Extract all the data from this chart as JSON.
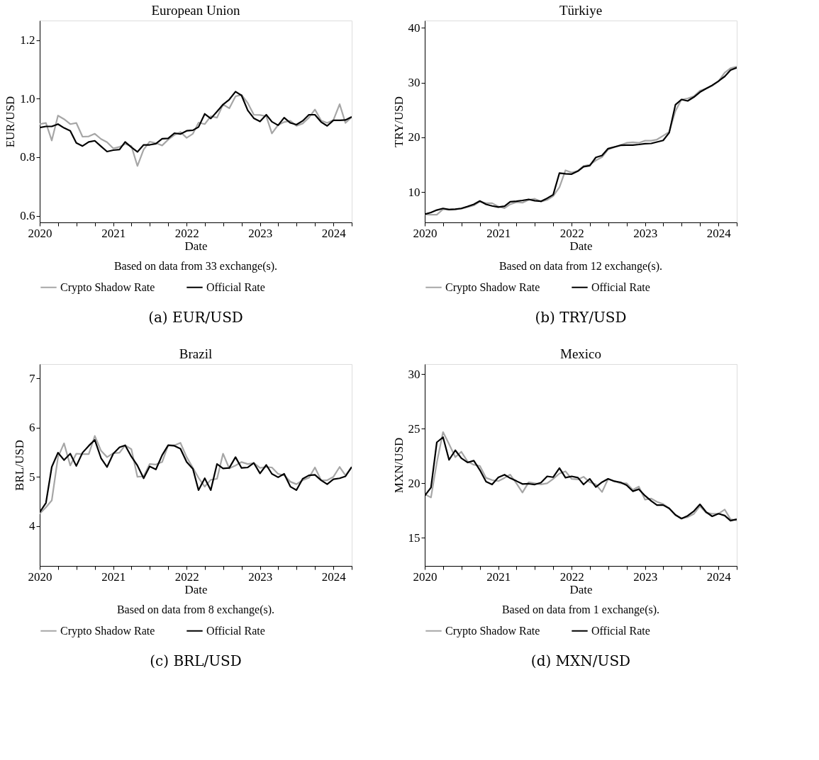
{
  "chart_data": [
    {
      "type": "line",
      "title": "European Union",
      "xlabel": "Date",
      "ylabel": "EUR/USD",
      "legend": "bottom",
      "line_style": "solid",
      "annotations": [
        "Based on data from 33 exchange(s).",
        "(a) EUR/USD"
      ],
      "xlim": [
        "2020-01",
        "2024-04"
      ],
      "xticks": [
        {
          "value": "2020-01",
          "label": "2020"
        },
        {
          "value": "2020-04",
          "label": null
        },
        {
          "value": "2020-07",
          "label": null
        },
        {
          "value": "2020-10",
          "label": null
        },
        {
          "value": "2021-01",
          "label": "2021"
        },
        {
          "value": "2021-04",
          "label": null
        },
        {
          "value": "2021-07",
          "label": null
        },
        {
          "value": "2021-10",
          "label": null
        },
        {
          "value": "2022-01",
          "label": "2022"
        },
        {
          "value": "2022-04",
          "label": null
        },
        {
          "value": "2022-07",
          "label": null
        },
        {
          "value": "2022-10",
          "label": null
        },
        {
          "value": "2023-01",
          "label": "2023"
        },
        {
          "value": "2023-04",
          "label": null
        },
        {
          "value": "2023-07",
          "label": null
        },
        {
          "value": "2023-10",
          "label": null
        },
        {
          "value": "2024-01",
          "label": "2024"
        },
        {
          "value": "2024-04",
          "label": null
        }
      ],
      "ylim": [
        0.577,
        1.267
      ],
      "yticks": [
        0.6,
        0.8,
        {
          "value": 1.0,
          "label": "1.0"
        },
        1.2
      ],
      "x": [
        "2020-01",
        "2020-02",
        "2020-03",
        "2020-04",
        "2020-05",
        "2020-06",
        "2020-07",
        "2020-08",
        "2020-09",
        "2020-10",
        "2020-11",
        "2020-12",
        "2021-01",
        "2021-02",
        "2021-03",
        "2021-04",
        "2021-05",
        "2021-06",
        "2021-07",
        "2021-08",
        "2021-09",
        "2021-10",
        "2021-11",
        "2021-12",
        "2022-01",
        "2022-02",
        "2022-03",
        "2022-04",
        "2022-05",
        "2022-06",
        "2022-07",
        "2022-08",
        "2022-09",
        "2022-10",
        "2022-11",
        "2022-12",
        "2023-01",
        "2023-02",
        "2023-03",
        "2023-04",
        "2023-05",
        "2023-06",
        "2023-07",
        "2023-08",
        "2023-09",
        "2023-10",
        "2023-11",
        "2023-12",
        "2024-01",
        "2024-02",
        "2024-03",
        "2024-04"
      ],
      "series": [
        {
          "name": "Crypto Shadow Rate",
          "color": "#a6a6a6",
          "values": [
            0.913,
            0.917,
            0.857,
            0.942,
            0.93,
            0.913,
            0.917,
            0.87,
            0.871,
            0.88,
            0.862,
            0.851,
            0.83,
            0.835,
            0.845,
            0.838,
            0.77,
            0.826,
            0.853,
            0.848,
            0.84,
            0.86,
            0.876,
            0.886,
            0.866,
            0.88,
            0.918,
            0.913,
            0.94,
            0.935,
            0.98,
            0.967,
            1.008,
            1.013,
            0.985,
            0.945,
            0.944,
            0.94,
            0.881,
            0.91,
            0.92,
            0.924,
            0.907,
            0.915,
            0.935,
            0.963,
            0.925,
            0.917,
            0.927,
            0.981,
            0.917,
            0.937
          ]
        },
        {
          "name": "Official Rate",
          "color": "#000000",
          "values": [
            0.901,
            0.905,
            0.905,
            0.913,
            0.9,
            0.89,
            0.849,
            0.838,
            0.852,
            0.856,
            0.837,
            0.819,
            0.824,
            0.826,
            0.852,
            0.834,
            0.818,
            0.842,
            0.842,
            0.846,
            0.863,
            0.864,
            0.882,
            0.879,
            0.89,
            0.892,
            0.903,
            0.948,
            0.932,
            0.956,
            0.98,
            0.997,
            1.024,
            1.011,
            0.96,
            0.933,
            0.922,
            0.945,
            0.921,
            0.909,
            0.935,
            0.917,
            0.911,
            0.924,
            0.945,
            0.945,
            0.92,
            0.907,
            0.926,
            0.926,
            0.927,
            0.938
          ]
        }
      ]
    },
    {
      "type": "line",
      "title": "Türkiye",
      "xlabel": "Date",
      "ylabel": "TRY/USD",
      "legend": "bottom",
      "line_style": "solid",
      "annotations": [
        "Based on data from 12 exchange(s).",
        "(b) TRY/USD"
      ],
      "xlim": [
        "2020-01",
        "2024-04"
      ],
      "xticks": [
        {
          "value": "2020-01",
          "label": "2020"
        },
        {
          "value": "2020-04",
          "label": null
        },
        {
          "value": "2020-07",
          "label": null
        },
        {
          "value": "2020-10",
          "label": null
        },
        {
          "value": "2021-01",
          "label": "2021"
        },
        {
          "value": "2021-04",
          "label": null
        },
        {
          "value": "2021-07",
          "label": null
        },
        {
          "value": "2021-10",
          "label": null
        },
        {
          "value": "2022-01",
          "label": "2022"
        },
        {
          "value": "2022-04",
          "label": null
        },
        {
          "value": "2022-07",
          "label": null
        },
        {
          "value": "2022-10",
          "label": null
        },
        {
          "value": "2023-01",
          "label": "2023"
        },
        {
          "value": "2023-04",
          "label": null
        },
        {
          "value": "2023-07",
          "label": null
        },
        {
          "value": "2023-10",
          "label": null
        },
        {
          "value": "2024-01",
          "label": "2024"
        },
        {
          "value": "2024-04",
          "label": null
        }
      ],
      "ylim": [
        4.5,
        41.3
      ],
      "yticks": [
        10,
        20,
        30,
        40
      ],
      "x": [
        "2020-01",
        "2020-02",
        "2020-03",
        "2020-04",
        "2020-05",
        "2020-06",
        "2020-07",
        "2020-08",
        "2020-09",
        "2020-10",
        "2020-11",
        "2020-12",
        "2021-01",
        "2021-02",
        "2021-03",
        "2021-04",
        "2021-05",
        "2021-06",
        "2021-07",
        "2021-08",
        "2021-09",
        "2021-10",
        "2021-11",
        "2021-12",
        "2022-01",
        "2022-02",
        "2022-03",
        "2022-04",
        "2022-05",
        "2022-06",
        "2022-07",
        "2022-08",
        "2022-09",
        "2022-10",
        "2022-11",
        "2022-12",
        "2023-01",
        "2023-02",
        "2023-03",
        "2023-04",
        "2023-05",
        "2023-06",
        "2023-07",
        "2023-08",
        "2023-09",
        "2023-10",
        "2023-11",
        "2023-12",
        "2024-01",
        "2024-02",
        "2024-03",
        "2024-04"
      ],
      "series": [
        {
          "name": "Crypto Shadow Rate",
          "color": "#a6a6a6",
          "values": [
            5.95,
            5.9,
            5.9,
            6.9,
            6.85,
            6.9,
            7.0,
            7.3,
            7.6,
            8.3,
            8.0,
            8.0,
            7.4,
            7.1,
            7.8,
            8.2,
            8.1,
            8.6,
            8.8,
            8.3,
            8.6,
            9.3,
            10.9,
            14.0,
            13.6,
            13.9,
            14.8,
            15.0,
            15.8,
            16.4,
            17.8,
            18.2,
            18.6,
            19.0,
            19.1,
            19.0,
            19.4,
            19.4,
            19.6,
            20.3,
            21.0,
            24.8,
            26.9,
            27.1,
            27.5,
            28.5,
            28.9,
            29.4,
            30.2,
            31.8,
            32.6,
            32.9
          ]
        },
        {
          "name": "Official Rate",
          "color": "#000000",
          "values": [
            5.99,
            6.3,
            6.75,
            7.05,
            6.85,
            6.9,
            7.05,
            7.4,
            7.8,
            8.4,
            7.8,
            7.5,
            7.3,
            7.45,
            8.25,
            8.35,
            8.5,
            8.7,
            8.45,
            8.35,
            8.9,
            9.55,
            13.5,
            13.35,
            13.3,
            13.85,
            14.65,
            14.85,
            16.35,
            16.7,
            17.95,
            18.25,
            18.55,
            18.6,
            18.6,
            18.7,
            18.85,
            18.9,
            19.15,
            19.45,
            20.85,
            25.95,
            26.9,
            26.65,
            27.35,
            28.25,
            28.9,
            29.5,
            30.25,
            31.1,
            32.25,
            32.7
          ]
        }
      ]
    },
    {
      "type": "line",
      "title": "Brazil",
      "xlabel": "Date",
      "ylabel": "BRL/USD",
      "legend": "bottom",
      "line_style": "solid",
      "annotations": [
        "Based on data from 8 exchange(s).",
        "(c) BRL/USD"
      ],
      "xlim": [
        "2020-01",
        "2024-04"
      ],
      "xticks": [
        {
          "value": "2020-01",
          "label": "2020"
        },
        {
          "value": "2020-04",
          "label": null
        },
        {
          "value": "2020-07",
          "label": null
        },
        {
          "value": "2020-10",
          "label": null
        },
        {
          "value": "2021-01",
          "label": "2021"
        },
        {
          "value": "2021-04",
          "label": null
        },
        {
          "value": "2021-07",
          "label": null
        },
        {
          "value": "2021-10",
          "label": null
        },
        {
          "value": "2022-01",
          "label": "2022"
        },
        {
          "value": "2022-04",
          "label": null
        },
        {
          "value": "2022-07",
          "label": null
        },
        {
          "value": "2022-10",
          "label": null
        },
        {
          "value": "2023-01",
          "label": "2023"
        },
        {
          "value": "2023-04",
          "label": null
        },
        {
          "value": "2023-07",
          "label": null
        },
        {
          "value": "2023-10",
          "label": null
        },
        {
          "value": "2024-01",
          "label": "2024"
        },
        {
          "value": "2024-04",
          "label": null
        }
      ],
      "ylim": [
        3.19,
        7.29
      ],
      "yticks": [
        4,
        5,
        6,
        7
      ],
      "x": [
        "2020-01",
        "2020-02",
        "2020-03",
        "2020-04",
        "2020-05",
        "2020-06",
        "2020-07",
        "2020-08",
        "2020-09",
        "2020-10",
        "2020-11",
        "2020-12",
        "2021-01",
        "2021-02",
        "2021-03",
        "2021-04",
        "2021-05",
        "2021-06",
        "2021-07",
        "2021-08",
        "2021-09",
        "2021-10",
        "2021-11",
        "2021-12",
        "2022-01",
        "2022-02",
        "2022-03",
        "2022-04",
        "2022-05",
        "2022-06",
        "2022-07",
        "2022-08",
        "2022-09",
        "2022-10",
        "2022-11",
        "2022-12",
        "2023-01",
        "2023-02",
        "2023-03",
        "2023-04",
        "2023-05",
        "2023-06",
        "2023-07",
        "2023-08",
        "2023-09",
        "2023-10",
        "2023-11",
        "2023-12",
        "2024-01",
        "2024-02",
        "2024-03",
        "2024-04"
      ],
      "series": [
        {
          "name": "Crypto Shadow Rate",
          "color": "#a6a6a6",
          "values": [
            4.25,
            4.38,
            4.52,
            5.4,
            5.68,
            5.23,
            5.47,
            5.46,
            5.46,
            5.83,
            5.53,
            5.4,
            5.48,
            5.49,
            5.64,
            5.56,
            5.0,
            5.01,
            5.26,
            5.25,
            5.3,
            5.64,
            5.64,
            5.69,
            5.4,
            5.18,
            4.98,
            4.8,
            4.94,
            4.96,
            5.47,
            5.17,
            5.23,
            5.3,
            5.26,
            5.28,
            5.18,
            5.2,
            5.19,
            5.06,
            5.03,
            4.9,
            4.85,
            4.93,
            4.98,
            5.19,
            4.93,
            4.93,
            5.0,
            5.2,
            5.03,
            5.2
          ]
        },
        {
          "name": "Official Rate",
          "color": "#000000",
          "values": [
            4.28,
            4.47,
            5.2,
            5.49,
            5.34,
            5.47,
            5.22,
            5.49,
            5.63,
            5.75,
            5.38,
            5.2,
            5.47,
            5.6,
            5.64,
            5.41,
            5.23,
            4.97,
            5.21,
            5.15,
            5.44,
            5.64,
            5.63,
            5.57,
            5.3,
            5.16,
            4.73,
            4.97,
            4.73,
            5.26,
            5.17,
            5.18,
            5.4,
            5.18,
            5.19,
            5.28,
            5.07,
            5.24,
            5.06,
            4.99,
            5.06,
            4.8,
            4.73,
            4.96,
            5.03,
            5.04,
            4.93,
            4.85,
            4.95,
            4.97,
            5.01,
            5.2
          ]
        }
      ]
    },
    {
      "type": "line",
      "title": "Mexico",
      "xlabel": "Date",
      "ylabel": "MXN/USD",
      "legend": "bottom",
      "line_style": "solid",
      "annotations": [
        "Based on data from 1 exchange(s).",
        "(d) MXN/USD"
      ],
      "xlim": [
        "2020-01",
        "2024-04"
      ],
      "xticks": [
        {
          "value": "2020-01",
          "label": "2020"
        },
        {
          "value": "2020-04",
          "label": null
        },
        {
          "value": "2020-07",
          "label": null
        },
        {
          "value": "2020-10",
          "label": null
        },
        {
          "value": "2021-01",
          "label": "2021"
        },
        {
          "value": "2021-04",
          "label": null
        },
        {
          "value": "2021-07",
          "label": null
        },
        {
          "value": "2021-10",
          "label": null
        },
        {
          "value": "2022-01",
          "label": "2022"
        },
        {
          "value": "2022-04",
          "label": null
        },
        {
          "value": "2022-07",
          "label": null
        },
        {
          "value": "2022-10",
          "label": null
        },
        {
          "value": "2023-01",
          "label": "2023"
        },
        {
          "value": "2023-04",
          "label": null
        },
        {
          "value": "2023-07",
          "label": null
        },
        {
          "value": "2023-10",
          "label": null
        },
        {
          "value": "2024-01",
          "label": "2024"
        },
        {
          "value": "2024-04",
          "label": null
        }
      ],
      "ylim": [
        12.42,
        30.94
      ],
      "yticks": [
        15,
        20,
        25,
        30
      ],
      "x": [
        "2020-01",
        "2020-02",
        "2020-03",
        "2020-04",
        "2020-05",
        "2020-06",
        "2020-07",
        "2020-08",
        "2020-09",
        "2020-10",
        "2020-11",
        "2020-12",
        "2021-01",
        "2021-02",
        "2021-03",
        "2021-04",
        "2021-05",
        "2021-06",
        "2021-07",
        "2021-08",
        "2021-09",
        "2021-10",
        "2021-11",
        "2021-12",
        "2022-01",
        "2022-02",
        "2022-03",
        "2022-04",
        "2022-05",
        "2022-06",
        "2022-07",
        "2022-08",
        "2022-09",
        "2022-10",
        "2022-11",
        "2022-12",
        "2023-01",
        "2023-02",
        "2023-03",
        "2023-04",
        "2023-05",
        "2023-06",
        "2023-07",
        "2023-08",
        "2023-09",
        "2023-10",
        "2023-11",
        "2023-12",
        "2024-01",
        "2024-02",
        "2024-03",
        "2024-04"
      ],
      "series": [
        {
          "name": "Crypto Shadow Rate",
          "color": "#a6a6a6",
          "values": [
            19.0,
            18.7,
            21.9,
            24.7,
            23.6,
            22.4,
            22.9,
            22.0,
            21.7,
            21.6,
            20.5,
            20.3,
            20.2,
            20.5,
            20.8,
            20.0,
            19.15,
            20.1,
            20.0,
            19.9,
            20.0,
            20.4,
            20.9,
            21.1,
            20.4,
            20.35,
            20.6,
            20.1,
            19.9,
            19.2,
            20.4,
            20.2,
            20.0,
            20.0,
            19.4,
            19.7,
            18.5,
            18.6,
            18.3,
            18.1,
            17.7,
            17.1,
            16.8,
            16.9,
            17.2,
            17.9,
            17.3,
            17.2,
            17.2,
            17.6,
            16.7,
            16.6
          ]
        },
        {
          "name": "Official Rate",
          "color": "#000000",
          "values": [
            18.86,
            19.61,
            23.76,
            24.23,
            22.15,
            23.03,
            22.3,
            21.91,
            22.08,
            21.22,
            20.15,
            19.89,
            20.54,
            20.79,
            20.47,
            20.21,
            19.94,
            19.96,
            19.89,
            20.06,
            20.64,
            20.56,
            21.39,
            20.52,
            20.64,
            20.52,
            19.89,
            20.41,
            19.66,
            20.11,
            20.41,
            20.19,
            20.09,
            19.83,
            19.27,
            19.46,
            18.86,
            18.37,
            18.0,
            18.0,
            17.7,
            17.1,
            16.76,
            17.02,
            17.45,
            18.07,
            17.36,
            16.97,
            17.21,
            17.04,
            16.57,
            16.7
          ]
        }
      ]
    }
  ]
}
